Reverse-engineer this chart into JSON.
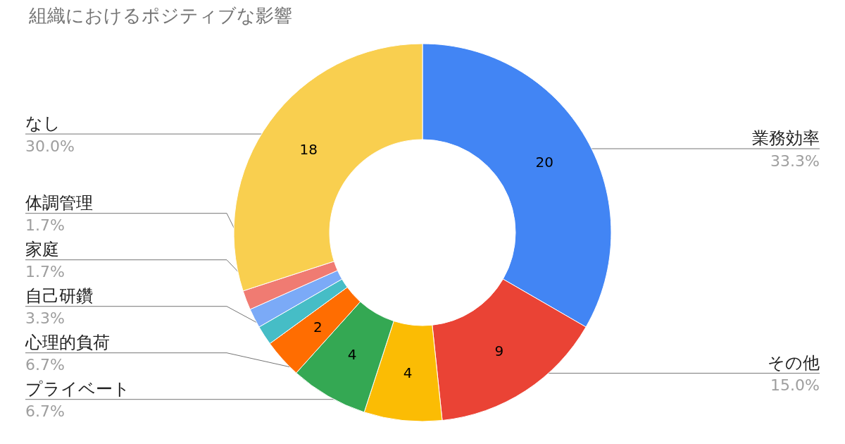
{
  "chart_data": {
    "type": "donut",
    "title": "組織におけるポジティブな影響",
    "categories": [
      "業務効率",
      "その他",
      "プライベート",
      "心理的負荷",
      "自己研鑽",
      null,
      "家庭",
      "体調管理",
      "なし"
    ],
    "values": [
      20,
      9,
      4,
      4,
      2,
      1,
      1,
      1,
      18
    ],
    "colors": [
      "#4285f4",
      "#ea4335",
      "#fbbc04",
      "#34a853",
      "#ff6d01",
      "#46bdc6",
      "#7baaf7",
      "#f07b72",
      "#f9cf4f"
    ],
    "value_labels": [
      "20",
      "9",
      "4",
      "4",
      "2",
      null,
      null,
      null,
      "18"
    ],
    "annotations": [
      "33.3%",
      "15.0%",
      "6.7%",
      "6.7%",
      "3.3%",
      "1.7%",
      "1.7%",
      "30.0%"
    ],
    "legend": false
  }
}
